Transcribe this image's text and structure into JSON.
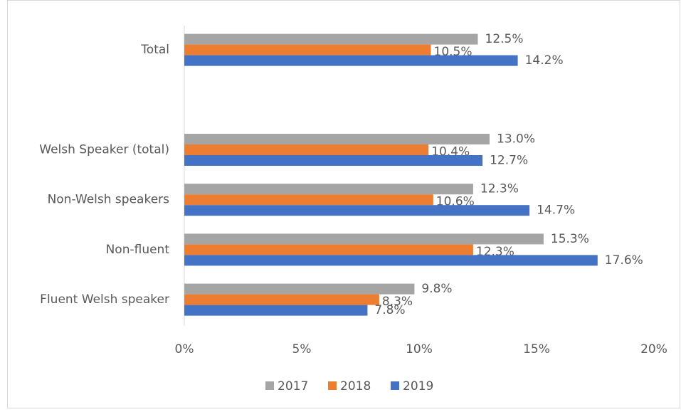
{
  "chart_data": {
    "type": "hbar",
    "categories": [
      "Total",
      null,
      "Welsh Speaker (total)",
      "Non-Welsh speakers",
      "Non-fluent",
      "Fluent Welsh speaker"
    ],
    "series": [
      {
        "name": "2017",
        "color": "#a5a5a5",
        "values": [
          12.5,
          null,
          13.0,
          12.3,
          15.3,
          9.8
        ],
        "value_labels": [
          "12.5%",
          null,
          "13.0%",
          "12.3%",
          "15.3%",
          "9.8%"
        ]
      },
      {
        "name": "2018",
        "color": "#ed7d31",
        "values": [
          10.5,
          null,
          10.4,
          10.6,
          12.3,
          8.3
        ],
        "value_labels": [
          "10.5%",
          null,
          "10.4%",
          "10.6%",
          "12.3%",
          "8.3%"
        ]
      },
      {
        "name": "2019",
        "color": "#4472c4",
        "values": [
          14.2,
          null,
          12.7,
          14.7,
          17.6,
          7.8
        ],
        "value_labels": [
          "14.2%",
          null,
          "12.7%",
          "14.7%",
          "17.6%",
          "7.8%"
        ]
      }
    ],
    "xlim": [
      0,
      20
    ],
    "xticks": [
      {
        "value": 0,
        "label": "0%"
      },
      {
        "value": 5,
        "label": "5%"
      },
      {
        "value": 10,
        "label": "10%"
      },
      {
        "value": 15,
        "label": "15%"
      },
      {
        "value": 20,
        "label": "20%"
      }
    ],
    "legend": "bottom"
  }
}
